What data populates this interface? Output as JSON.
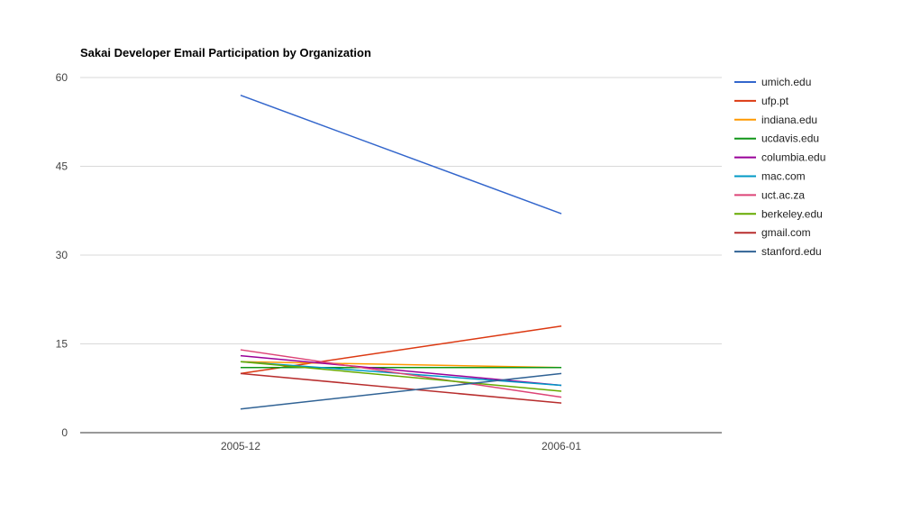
{
  "chart_data": {
    "type": "line",
    "title": "Sakai Developer Email Participation by Organization",
    "xlabel": "",
    "ylabel": "",
    "categories": [
      "2005-12",
      "2006-01"
    ],
    "ylim": [
      0,
      60
    ],
    "yticks": [
      0,
      15,
      30,
      45,
      60
    ],
    "grid": true,
    "legend_position": "right",
    "series": [
      {
        "name": "umich.edu",
        "color": "#3366cc",
        "values": [
          57,
          37
        ]
      },
      {
        "name": "ufp.pt",
        "color": "#dc3912",
        "values": [
          10,
          18
        ]
      },
      {
        "name": "indiana.edu",
        "color": "#ff9900",
        "values": [
          12,
          11
        ]
      },
      {
        "name": "ucdavis.edu",
        "color": "#109618",
        "values": [
          11,
          11
        ]
      },
      {
        "name": "columbia.edu",
        "color": "#990099",
        "values": [
          13,
          8
        ]
      },
      {
        "name": "mac.com",
        "color": "#0099c6",
        "values": [
          12,
          8
        ]
      },
      {
        "name": "uct.ac.za",
        "color": "#dd4477",
        "values": [
          14,
          6
        ]
      },
      {
        "name": "berkeley.edu",
        "color": "#66aa00",
        "values": [
          12,
          7
        ]
      },
      {
        "name": "gmail.com",
        "color": "#b82e2e",
        "values": [
          10,
          5
        ]
      },
      {
        "name": "stanford.edu",
        "color": "#316395",
        "values": [
          4,
          10
        ]
      }
    ]
  }
}
